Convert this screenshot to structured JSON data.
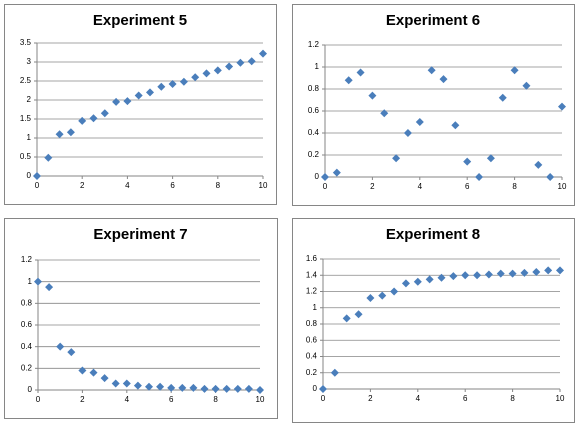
{
  "chart_data": [
    {
      "type": "scatter",
      "title": "Experiment 5",
      "color": "#4a7ebb",
      "grid": true,
      "x": [
        0,
        0.5,
        1,
        1.5,
        2,
        2.5,
        3,
        3.5,
        4,
        4.5,
        5,
        5.5,
        6,
        6.5,
        7,
        7.5,
        8,
        8.5,
        9,
        9.5,
        10
      ],
      "values": [
        0,
        0.48,
        1.1,
        1.15,
        1.45,
        1.52,
        1.65,
        1.95,
        1.97,
        2.12,
        2.2,
        2.35,
        2.42,
        2.48,
        2.6,
        2.7,
        2.78,
        2.88,
        2.98,
        3.02,
        3.22
      ],
      "xlim": [
        0,
        10
      ],
      "xticks": [
        0,
        2,
        4,
        6,
        8,
        10
      ],
      "ylim": [
        0,
        3.5
      ],
      "yticks": [
        0,
        0.5,
        1,
        1.5,
        2,
        2.5,
        3,
        3.5
      ]
    },
    {
      "type": "scatter",
      "title": "Experiment 6",
      "color": "#4a7ebb",
      "grid": true,
      "x": [
        0,
        0.5,
        1,
        1.5,
        2,
        2.5,
        3,
        3.5,
        4,
        4.5,
        5,
        5.5,
        6,
        6.5,
        7,
        7.5,
        8,
        8.5,
        9,
        9.5,
        10
      ],
      "values": [
        0,
        0.04,
        0.88,
        0.95,
        0.74,
        0.58,
        0.17,
        0.4,
        0.5,
        0.97,
        0.89,
        0.47,
        0.14,
        0,
        0.17,
        0.72,
        0.97,
        0.83,
        0.11,
        0,
        0.64
      ],
      "xlim": [
        0,
        10
      ],
      "xticks": [
        0,
        2,
        4,
        6,
        8,
        10
      ],
      "ylim": [
        0,
        1.2
      ],
      "yticks": [
        0,
        0.2,
        0.4,
        0.6,
        0.8,
        1,
        1.2
      ]
    },
    {
      "type": "scatter",
      "title": "Experiment 7",
      "color": "#4a7ebb",
      "grid": true,
      "x": [
        0,
        0.5,
        1,
        1.5,
        2,
        2.5,
        3,
        3.5,
        4,
        4.5,
        5,
        5.5,
        6,
        6.5,
        7,
        7.5,
        8,
        8.5,
        9,
        9.5,
        10
      ],
      "values": [
        1,
        0.95,
        0.4,
        0.35,
        0.18,
        0.16,
        0.11,
        0.06,
        0.06,
        0.04,
        0.03,
        0.03,
        0.02,
        0.02,
        0.02,
        0.01,
        0.01,
        0.01,
        0.01,
        0.01,
        0
      ],
      "xlim": [
        0,
        10
      ],
      "xticks": [
        0,
        2,
        4,
        6,
        8,
        10
      ],
      "ylim": [
        0,
        1.2
      ],
      "yticks": [
        0,
        0.2,
        0.4,
        0.6,
        0.8,
        1,
        1.2
      ]
    },
    {
      "type": "scatter",
      "title": "Experiment 8",
      "color": "#4a7ebb",
      "grid": true,
      "x": [
        0,
        0.5,
        1,
        1.5,
        2,
        2.5,
        3,
        3.5,
        4,
        4.5,
        5,
        5.5,
        6,
        6.5,
        7,
        7.5,
        8,
        8.5,
        9,
        9.5,
        10
      ],
      "values": [
        0,
        0.2,
        0.87,
        0.92,
        1.12,
        1.15,
        1.2,
        1.3,
        1.32,
        1.35,
        1.37,
        1.39,
        1.4,
        1.4,
        1.41,
        1.42,
        1.42,
        1.43,
        1.44,
        1.46,
        1.46
      ],
      "xlim": [
        0,
        10
      ],
      "xticks": [
        0,
        2,
        4,
        6,
        8,
        10
      ],
      "ylim": [
        0,
        1.6
      ],
      "yticks": [
        0,
        0.2,
        0.4,
        0.6,
        0.8,
        1,
        1.2,
        1.4,
        1.6
      ]
    }
  ]
}
